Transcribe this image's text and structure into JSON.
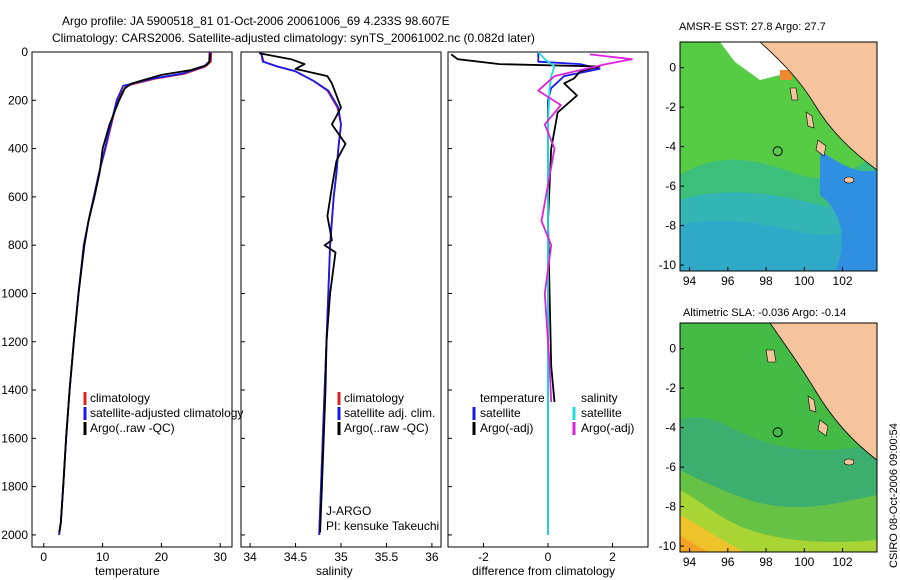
{
  "header": {
    "line1": "Argo profile: JA 5900518_81 01-Oct-2006 20061006_69 4.233S 98.607E",
    "line2": "Climatology: CARS2006. Satellite-adjusted climatology: synTS_20061002.nc (0.082d later)"
  },
  "credit": "CSIRO 08-Oct-2006 09:00:54",
  "colors": {
    "climatology": "#dd2222",
    "satellite": "#1a1aee",
    "argo": "#000000",
    "cyan": "#22dddd",
    "magenta": "#dd22dd",
    "land": "#f5c49c"
  },
  "chart_data": [
    {
      "type": "line",
      "id": "temperature",
      "xlabel": "temperature",
      "ylabel": "",
      "xlim": [
        -2,
        32
      ],
      "ylim": [
        0,
        2050
      ],
      "y_inverted": true,
      "xticks": [
        0,
        10,
        20,
        30
      ],
      "yticks": [
        0,
        200,
        400,
        600,
        800,
        1000,
        1200,
        1400,
        1600,
        1800,
        2000
      ],
      "legend": [
        "climatology",
        "satellite-adjusted climatology",
        "Argo(..raw -QC)"
      ],
      "series": [
        {
          "name": "climatology",
          "color": "#dd2222",
          "x": [
            28.5,
            28.4,
            27.5,
            24,
            19,
            14,
            12.5,
            11.5,
            10.5,
            9.4,
            8.5,
            7.6,
            6.8,
            5.9,
            5.1,
            4.4,
            3.8,
            3.3,
            2.9,
            2.6
          ],
          "y": [
            0,
            40,
            60,
            90,
            110,
            140,
            200,
            300,
            400,
            500,
            600,
            700,
            800,
            1000,
            1200,
            1400,
            1600,
            1800,
            1950,
            2000
          ]
        },
        {
          "name": "satellite-adjusted climatology",
          "color": "#1a1aee",
          "x": [
            28.2,
            28.1,
            27.2,
            23.5,
            18.5,
            13.5,
            12.4,
            11.4,
            10.4,
            9.4,
            8.5,
            7.6,
            6.8,
            5.9,
            5.1,
            4.4,
            3.8,
            3.3,
            2.9,
            2.6
          ],
          "y": [
            0,
            40,
            60,
            90,
            110,
            140,
            200,
            300,
            400,
            500,
            600,
            700,
            800,
            1000,
            1200,
            1400,
            1600,
            1800,
            1950,
            2000
          ]
        },
        {
          "name": "Argo(..raw -QC)",
          "color": "#000000",
          "x": [
            28.3,
            28.2,
            27.6,
            25,
            20,
            15,
            13.8,
            12.8,
            11.2,
            10.0,
            9.5,
            8.6,
            7.6,
            6.9,
            5.9,
            5.1,
            4.4,
            3.8,
            3.3,
            2.9,
            2.6
          ],
          "y": [
            5,
            40,
            55,
            75,
            95,
            130,
            150,
            200,
            300,
            400,
            500,
            600,
            700,
            800,
            1000,
            1200,
            1400,
            1600,
            1800,
            1950,
            1990
          ]
        }
      ]
    },
    {
      "type": "line",
      "id": "salinity",
      "xlabel": "salinity",
      "ylabel": "",
      "xlim": [
        33.9,
        36.1
      ],
      "ylim": [
        0,
        2050
      ],
      "y_inverted": true,
      "xticks": [
        34,
        34.5,
        35,
        35.5,
        36
      ],
      "legend": [
        "climatology",
        "satellite adj. clim.",
        "Argo(..raw -QC)"
      ],
      "annotations": [
        "J-ARGO",
        "PI: kensuke Takeuchi"
      ],
      "series": [
        {
          "name": "climatology",
          "color": "#dd2222",
          "x": [
            34.12,
            34.15,
            34.3,
            34.5,
            34.7,
            34.85,
            34.96,
            35.0,
            34.97,
            34.95,
            34.92,
            34.9,
            34.88,
            34.86,
            34.84,
            34.82,
            34.8,
            34.78,
            34.76
          ],
          "y": [
            0,
            40,
            60,
            80,
            120,
            160,
            230,
            300,
            400,
            500,
            600,
            700,
            800,
            1000,
            1200,
            1400,
            1600,
            1800,
            2000
          ]
        },
        {
          "name": "satellite adj. clim.",
          "color": "#1a1aee",
          "x": [
            34.12,
            34.14,
            34.3,
            34.5,
            34.7,
            34.86,
            34.97,
            35.0,
            34.97,
            34.95,
            34.92,
            34.9,
            34.88,
            34.86,
            34.84,
            34.82,
            34.8,
            34.78,
            34.76
          ],
          "y": [
            0,
            40,
            60,
            80,
            120,
            160,
            230,
            300,
            400,
            500,
            600,
            700,
            800,
            1000,
            1200,
            1400,
            1600,
            1800,
            2000
          ]
        },
        {
          "name": "Argo(..raw -QC)",
          "color": "#000000",
          "x": [
            34.1,
            34.45,
            34.6,
            34.5,
            34.85,
            34.9,
            34.95,
            35.0,
            34.9,
            35.05,
            34.95,
            34.9,
            34.85,
            34.9,
            34.82,
            34.94,
            34.88,
            34.84,
            34.83,
            34.81,
            34.79,
            34.77
          ],
          "y": [
            5,
            30,
            50,
            70,
            100,
            130,
            180,
            230,
            300,
            380,
            450,
            560,
            680,
            780,
            800,
            830,
            1000,
            1200,
            1400,
            1600,
            1800,
            1990
          ]
        }
      ]
    },
    {
      "type": "line",
      "id": "difference",
      "xlabel": "difference from climatology",
      "ylabel": "",
      "xlim": [
        -3.1,
        3.1
      ],
      "ylim": [
        0,
        2050
      ],
      "y_inverted": true,
      "xticks": [
        -2,
        0,
        2
      ],
      "legend_temperature": [
        "temperature",
        "satellite",
        "Argo(-adj)"
      ],
      "legend_salinity": [
        "salinity",
        "satellite",
        "Argo(-adj)"
      ],
      "series": [
        {
          "name": "temperature satellite",
          "color": "#1a1aee",
          "x": [
            -0.3,
            -0.3,
            1.0,
            1.6,
            0.5,
            0.1,
            0,
            0,
            0,
            0,
            0,
            0
          ],
          "y": [
            0,
            40,
            50,
            70,
            100,
            150,
            200,
            400,
            800,
            1200,
            1600,
            2000
          ]
        },
        {
          "name": "temperature Argo(-adj)",
          "color": "#000000",
          "x": [
            -3.0,
            -2.8,
            -1.5,
            1.6,
            1.0,
            0.8,
            0.5,
            0.9,
            0.3,
            0.1,
            0,
            0.05,
            0.1,
            0.2
          ],
          "y": [
            10,
            30,
            50,
            60,
            80,
            110,
            130,
            180,
            250,
            400,
            700,
            1000,
            1300,
            1450
          ]
        },
        {
          "name": "salinity satellite",
          "color": "#22dddd",
          "x": [
            -0.3,
            -0.1,
            0.2,
            0.1,
            0.05,
            0,
            0,
            0,
            0,
            0
          ],
          "y": [
            0,
            30,
            60,
            100,
            150,
            300,
            600,
            1000,
            1500,
            2000
          ]
        },
        {
          "name": "salinity Argo(-adj)",
          "color": "#dd22dd",
          "x": [
            1.3,
            2.6,
            1.8,
            0.2,
            -0.3,
            0.4,
            -0.1,
            0.2,
            -0.2,
            0.1,
            -0.1,
            0.05,
            0.1
          ],
          "y": [
            10,
            30,
            50,
            100,
            160,
            220,
            300,
            400,
            700,
            800,
            1000,
            1300,
            1450
          ]
        }
      ]
    },
    {
      "type": "heatmap",
      "id": "sst-map",
      "title": "AMSR-E SST: 27.8 Argo: 27.7",
      "xlim": [
        93.5,
        103.8
      ],
      "ylim": [
        -10.3,
        1.3
      ],
      "xticks": [
        94,
        96,
        98,
        100,
        102
      ],
      "yticks": [
        0,
        -2,
        -4,
        -6,
        -8,
        -10
      ],
      "argo_position": [
        98.607,
        -4.233
      ]
    },
    {
      "type": "heatmap",
      "id": "sla-map",
      "title": "Altimetric SLA: -0.036 Argo: -0.14",
      "xlim": [
        93.5,
        103.8
      ],
      "ylim": [
        -10.3,
        1.3
      ],
      "xticks": [
        94,
        96,
        98,
        100,
        102
      ],
      "yticks": [
        0,
        -2,
        -4,
        -6,
        -8,
        -10
      ],
      "argo_position": [
        98.607,
        -4.233
      ]
    }
  ]
}
